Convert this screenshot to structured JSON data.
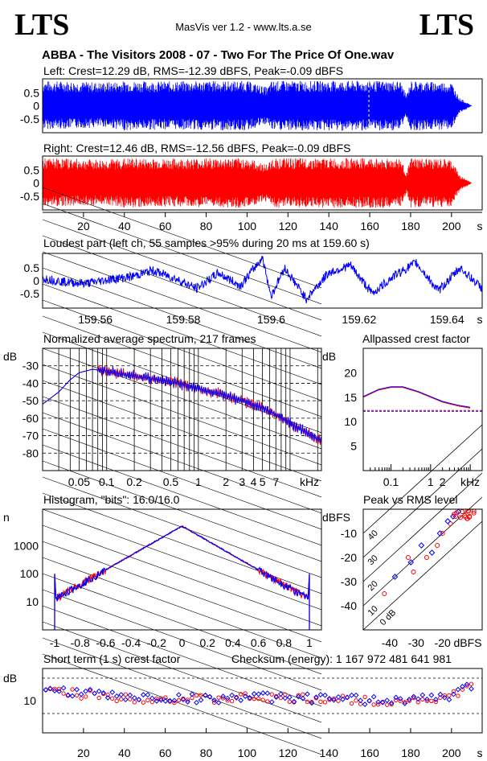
{
  "header": {
    "logo_left": "LTS",
    "logo_right": "LTS",
    "app": "MasVis ver 1.2 - www.lts.a.se",
    "file_title": "ABBA - The Visitors  2008 - 07 - Two For The Price Of One.wav"
  },
  "colors": {
    "left": "#0000ff",
    "right": "#ff0000"
  },
  "waveform_left": {
    "label": "Left: Crest=12.29 dB, RMS=-12.39 dBFS, Peak=-0.09 dBFS",
    "yticks": [
      "0.5",
      "0",
      "-0.5"
    ]
  },
  "waveform_right": {
    "label": "Right: Crest=12.46 dB, RMS=-12.56 dBFS, Peak=-0.09 dBFS",
    "yticks": [
      "0.5",
      "0",
      "-0.5"
    ],
    "xticks": [
      "20",
      "40",
      "60",
      "80",
      "100",
      "120",
      "140",
      "160",
      "180",
      "200",
      "s"
    ]
  },
  "loudest": {
    "label": "Loudest part (left  ch, 55 samples >95% during 20 ms at 159.60 s)",
    "yticks": [
      "0.5",
      "0",
      "-0.5"
    ],
    "xticks": [
      "159.56",
      "159.58",
      "159.6",
      "159.62",
      "159.64",
      "s"
    ]
  },
  "spectrum": {
    "label": "Normalized average spectrum, 217 frames",
    "yunit": "dB",
    "yticks": [
      "-30",
      "-40",
      "-50",
      "-60",
      "-70",
      "-80"
    ],
    "xticks": [
      "0.05",
      "0.1",
      "0.2",
      "0.5",
      "1",
      "2",
      "3",
      "4",
      "5",
      "7",
      "kHz"
    ]
  },
  "crest_ap": {
    "label": "Allpassed crest factor",
    "yunit": "dB",
    "yticks": [
      "20",
      "15",
      "10",
      "5"
    ],
    "xticks": [
      "0.1",
      "1",
      "2",
      "kHz"
    ]
  },
  "histogram": {
    "label": "Histogram, \"bits\": 16.0/16.0",
    "yunit": "n",
    "yticks": [
      "1000",
      "100",
      "10"
    ],
    "xticks": [
      "-1",
      "-0.8",
      "-0.6",
      "-0.4",
      "-0.2",
      "0",
      "0.2",
      "0.4",
      "0.6",
      "0.8",
      "1"
    ]
  },
  "peak_rms": {
    "label": "Peak vs RMS level",
    "yunit": "dBFS",
    "yticks": [
      "-10",
      "-20",
      "-30",
      "-40"
    ],
    "xticks": [
      "-40",
      "-30",
      "-20",
      "dBFS"
    ],
    "diag_labels": [
      "40",
      "30",
      "20",
      "10",
      "0 dB"
    ]
  },
  "short_crest": {
    "label": "Short term (1 s) crest factor",
    "checksum": "Checksum (energy):  1 167 972 481 641 981",
    "yunit": "dB",
    "yticks": [
      "10"
    ],
    "xticks": [
      "20",
      "40",
      "60",
      "80",
      "100",
      "120",
      "140",
      "160",
      "180",
      "200",
      "s"
    ]
  },
  "chart_data": [
    {
      "type": "area",
      "name": "waveform_left",
      "x": [
        0,
        10,
        20,
        28,
        30,
        40,
        60,
        80,
        100,
        110,
        112,
        130,
        150,
        160,
        175,
        178,
        180,
        200,
        204,
        210
      ],
      "env_top": [
        0.95,
        0.95,
        0.92,
        0.9,
        0.9,
        0.95,
        0.93,
        0.95,
        0.95,
        0.7,
        0.95,
        0.95,
        0.95,
        0.95,
        0.95,
        0.4,
        0.95,
        0.9,
        0.3,
        0.0
      ],
      "env_bottom": [
        -0.9,
        -0.88,
        -0.85,
        -0.85,
        -0.8,
        -0.95,
        -0.9,
        -0.93,
        -0.95,
        -0.7,
        -0.95,
        -0.95,
        -0.95,
        -0.95,
        -0.95,
        -0.4,
        -0.95,
        -0.9,
        -0.3,
        0.0
      ],
      "ylim": [
        -1,
        1
      ],
      "xlim": [
        0,
        215
      ]
    },
    {
      "type": "area",
      "name": "waveform_right",
      "x": [
        0,
        10,
        20,
        28,
        30,
        40,
        60,
        80,
        100,
        110,
        112,
        130,
        150,
        160,
        175,
        178,
        180,
        200,
        204,
        210
      ],
      "env_top": [
        0.95,
        0.95,
        0.92,
        0.9,
        0.9,
        0.95,
        0.93,
        0.95,
        0.95,
        0.7,
        0.95,
        0.95,
        0.95,
        0.95,
        0.95,
        0.4,
        0.95,
        0.9,
        0.3,
        0.0
      ],
      "env_bottom": [
        -0.9,
        -0.88,
        -0.85,
        -0.85,
        -0.8,
        -0.95,
        -0.9,
        -0.93,
        -0.95,
        -0.7,
        -0.95,
        -0.95,
        -0.95,
        -0.95,
        -0.95,
        -0.4,
        -0.95,
        -0.9,
        -0.3,
        0.0
      ],
      "ylim": [
        -1,
        1
      ],
      "xlim": [
        0,
        215
      ]
    },
    {
      "type": "line",
      "name": "loudest_part",
      "x": [
        159.548,
        159.553,
        159.558,
        159.563,
        159.568,
        159.573,
        159.578,
        159.583,
        159.588,
        159.593,
        159.598,
        159.6,
        159.603,
        159.608,
        159.613,
        159.618,
        159.623,
        159.628,
        159.633,
        159.638,
        159.643,
        159.648
      ],
      "y": [
        0.1,
        -0.05,
        -0.1,
        0.05,
        0.15,
        0.4,
        0.1,
        -0.3,
        0.3,
        -0.2,
        0.9,
        -0.6,
        0.5,
        -0.7,
        0.3,
        0.6,
        -0.5,
        0.2,
        0.7,
        -0.4,
        0.5,
        -0.3
      ],
      "ylim": [
        -1,
        1
      ]
    },
    {
      "type": "line",
      "name": "spectrum",
      "x": [
        0.02,
        0.03,
        0.04,
        0.05,
        0.07,
        0.1,
        0.2,
        0.5,
        1,
        2,
        3,
        5,
        7,
        10,
        15,
        20
      ],
      "series": [
        {
          "values": [
            -52,
            -45,
            -38,
            -34,
            -32,
            -33,
            -36,
            -39,
            -43,
            -47,
            -50,
            -54,
            -58,
            -63,
            -68,
            -72
          ]
        },
        {
          "values": [
            -52,
            -45,
            -38,
            -34,
            -32,
            -33,
            -36,
            -39,
            -43,
            -47,
            -50,
            -54,
            -58,
            -63,
            -68,
            -72
          ]
        }
      ],
      "ylim": [
        -90,
        -20
      ]
    },
    {
      "type": "line",
      "name": "allpassed_crest",
      "x": [
        0.02,
        0.05,
        0.1,
        0.2,
        0.5,
        1,
        2,
        5,
        10
      ],
      "series": [
        {
          "values": [
            15.0,
            16.5,
            17.0,
            17.0,
            16.0,
            15.0,
            14.0,
            13.2,
            12.8
          ]
        },
        {
          "values": [
            15.0,
            16.5,
            17.0,
            17.0,
            16.0,
            15.0,
            14.0,
            13.2,
            12.8
          ]
        }
      ],
      "crest_full_band": 12.3,
      "ylim": [
        0,
        25
      ]
    },
    {
      "type": "line",
      "name": "histogram",
      "x": [
        -1,
        -0.8,
        -0.6,
        -0.4,
        -0.2,
        0,
        0.2,
        0.4,
        0.6,
        0.8,
        1
      ],
      "series": [
        {
          "values": [
            100,
            20,
            60,
            180,
            500,
            5000,
            500,
            180,
            60,
            20,
            100
          ]
        },
        {
          "values": [
            100,
            18,
            55,
            170,
            480,
            5000,
            480,
            170,
            55,
            18,
            100
          ]
        }
      ],
      "ylim": [
        1,
        20000
      ]
    },
    {
      "type": "scatter",
      "name": "peak_vs_rms",
      "series": [
        {
          "x": [
            -42,
            -33,
            -31,
            -26,
            -22,
            -20,
            -17,
            -15
          ],
          "y": [
            -35,
            -20,
            -26,
            -20,
            -15,
            -10,
            -6,
            -3
          ]
        },
        {
          "x": [
            -38,
            -32,
            -28,
            -24,
            -21,
            -18,
            -16,
            -14
          ],
          "y": [
            -28,
            -22,
            -15,
            -18,
            -10,
            -5,
            -3,
            -1
          ]
        }
      ],
      "xlim": [
        -50,
        -5
      ],
      "ylim": [
        -50,
        0
      ]
    },
    {
      "type": "scatter",
      "name": "short_term_crest",
      "x": [
        0,
        20,
        40,
        60,
        80,
        100,
        120,
        140,
        160,
        180,
        200,
        210
      ],
      "series": [
        {
          "values": [
            11.5,
            11.0,
            10.5,
            10.3,
            10.2,
            10.5,
            10.3,
            10.2,
            10.0,
            10.0,
            10.5,
            12.0
          ]
        },
        {
          "values": [
            11.8,
            11.2,
            10.6,
            10.4,
            10.3,
            10.6,
            10.4,
            10.3,
            10.1,
            10.1,
            10.6,
            12.2
          ]
        }
      ],
      "ylim": [
        5,
        15
      ]
    }
  ]
}
